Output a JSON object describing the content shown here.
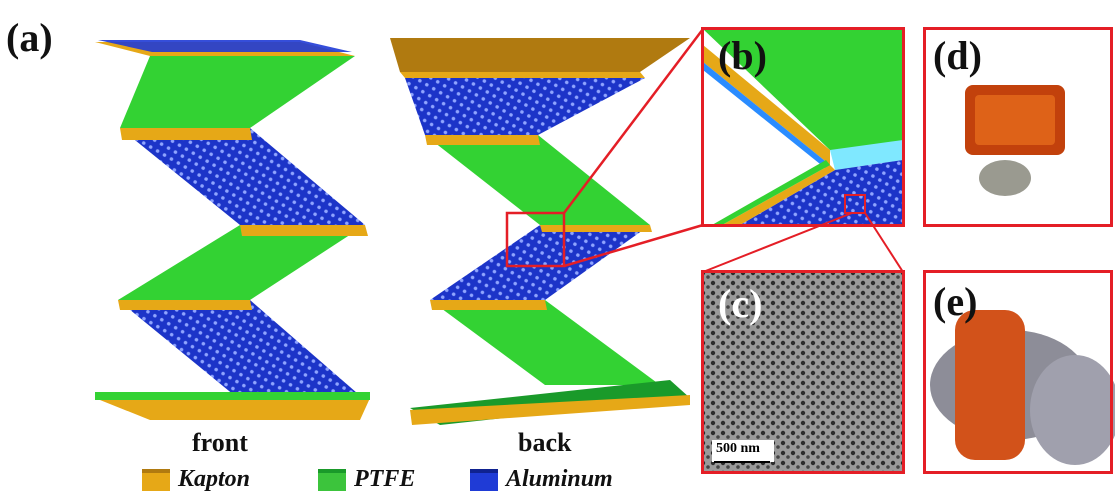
{
  "panels": {
    "a": "(a)",
    "b": "(b)",
    "c": "(c)",
    "d": "(d)",
    "e": "(e)"
  },
  "captions": {
    "front": "front",
    "back": "back"
  },
  "legend": [
    {
      "label": "Kapton",
      "color": "#e6a817"
    },
    {
      "label": "PTFE",
      "color": "#3cc43c"
    },
    {
      "label": "Aluminum",
      "color": "#1f3bd6"
    }
  ],
  "scale_bar": "500 nm",
  "colors": {
    "kapton": "#e6a817",
    "kapton_dark": "#a8700c",
    "ptfe": "#33d233",
    "aluminum": "#1f3bd6",
    "frame": "#e41e26"
  }
}
